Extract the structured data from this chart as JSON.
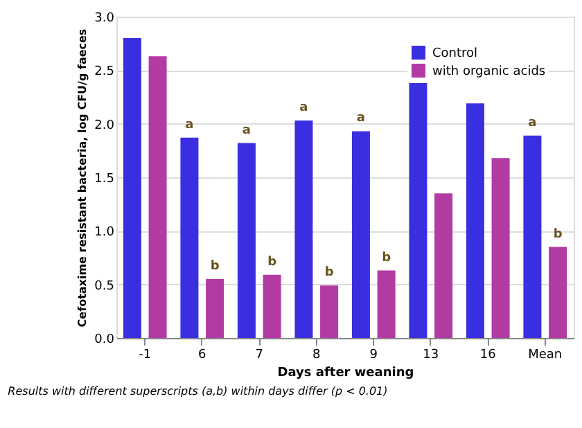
{
  "chart_data": {
    "type": "bar",
    "categories": [
      "-1",
      "6",
      "7",
      "8",
      "9",
      "13",
      "16",
      "Mean"
    ],
    "series": [
      {
        "name": "Control",
        "color": "#3a2fe0",
        "values": [
          2.8,
          1.87,
          1.82,
          2.03,
          1.93,
          2.38,
          2.19,
          1.89
        ]
      },
      {
        "name": "with organic acids",
        "color": "#b23aa3",
        "values": [
          2.63,
          0.55,
          0.59,
          0.49,
          0.63,
          1.35,
          1.68,
          0.85
        ]
      }
    ],
    "xlabel": "Days after weaning",
    "ylabel": "Cefotaxime resistant bacteria, log CFU/g faeces",
    "ylim": [
      0,
      3
    ],
    "yticks": [
      {
        "value": 0,
        "label": "0.0"
      },
      {
        "value": 0.5,
        "label": "0.5"
      },
      {
        "value": 1,
        "label": "1.0"
      },
      {
        "value": 1.5,
        "label": "1.5"
      },
      {
        "value": 2,
        "label": "2.0"
      },
      {
        "value": 2.5,
        "label": "2.5"
      },
      {
        "value": 3,
        "label": "3.0"
      }
    ],
    "grid": "y",
    "legend": "top right",
    "annotations": [
      {
        "text": "a",
        "x": "6",
        "y": 1.87
      },
      {
        "text": "a",
        "x": "7",
        "y": 1.82
      },
      {
        "text": "a",
        "x": "8",
        "y": 2.03
      },
      {
        "text": "a",
        "x": "9",
        "y": 1.93
      },
      {
        "text": "a",
        "x": "Mean",
        "y": 1.89
      },
      {
        "text": "b",
        "x": "6",
        "y": 0.55
      },
      {
        "text": "b",
        "x": "7",
        "y": 0.59
      },
      {
        "text": "b",
        "x": "8",
        "y": 0.49
      },
      {
        "text": "b",
        "x": "9",
        "y": 0.63
      },
      {
        "text": "b",
        "x": "Mean",
        "y": 0.85
      },
      "Results with different superscripts (a,b) within days differ (p < 0.01)"
    ]
  }
}
